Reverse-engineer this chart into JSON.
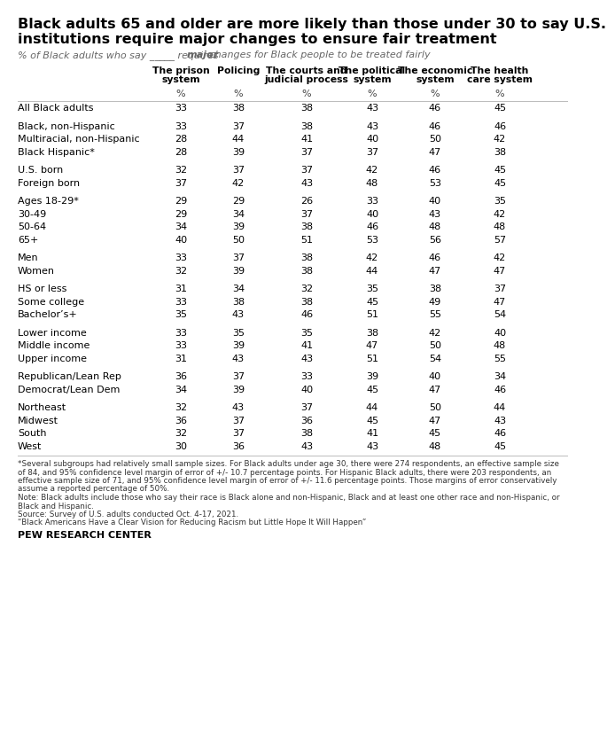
{
  "title_line1": "Black adults 65 and older are more likely than those under 30 to say U.S.",
  "title_line2": "institutions require major changes to ensure fair treatment",
  "subtitle_part1": "% of Black adults who say _____ requires ",
  "subtitle_bold": "major",
  "subtitle_part2": " changes for Black people to be treated fairly",
  "col_headers": [
    "The prison\nsystem",
    "Policing",
    "The courts and\njudicial process",
    "The political\nsystem",
    "The economic\nsystem",
    "The health\ncare system"
  ],
  "rows": [
    {
      "label": "All Black adults",
      "values": [
        33,
        38,
        38,
        43,
        46,
        45
      ],
      "gap_before": false
    },
    {
      "label": "Black, non-Hispanic",
      "values": [
        33,
        37,
        38,
        43,
        46,
        46
      ],
      "gap_before": true
    },
    {
      "label": "Multiracial, non-Hispanic",
      "values": [
        28,
        44,
        41,
        40,
        50,
        42
      ],
      "gap_before": false
    },
    {
      "label": "Black Hispanic*",
      "values": [
        28,
        39,
        37,
        37,
        47,
        38
      ],
      "gap_before": false
    },
    {
      "label": "U.S. born",
      "values": [
        32,
        37,
        37,
        42,
        46,
        45
      ],
      "gap_before": true
    },
    {
      "label": "Foreign born",
      "values": [
        37,
        42,
        43,
        48,
        53,
        45
      ],
      "gap_before": false
    },
    {
      "label": "Ages 18-29*",
      "values": [
        29,
        29,
        26,
        33,
        40,
        35
      ],
      "gap_before": true
    },
    {
      "label": "30-49",
      "values": [
        29,
        34,
        37,
        40,
        43,
        42
      ],
      "gap_before": false
    },
    {
      "label": "50-64",
      "values": [
        34,
        39,
        38,
        46,
        48,
        48
      ],
      "gap_before": false
    },
    {
      "label": "65+",
      "values": [
        40,
        50,
        51,
        53,
        56,
        57
      ],
      "gap_before": false
    },
    {
      "label": "Men",
      "values": [
        33,
        37,
        38,
        42,
        46,
        42
      ],
      "gap_before": true
    },
    {
      "label": "Women",
      "values": [
        32,
        39,
        38,
        44,
        47,
        47
      ],
      "gap_before": false
    },
    {
      "label": "HS or less",
      "values": [
        31,
        34,
        32,
        35,
        38,
        37
      ],
      "gap_before": true
    },
    {
      "label": "Some college",
      "values": [
        33,
        38,
        38,
        45,
        49,
        47
      ],
      "gap_before": false
    },
    {
      "label": "Bachelor’s+",
      "values": [
        35,
        43,
        46,
        51,
        55,
        54
      ],
      "gap_before": false
    },
    {
      "label": "Lower income",
      "values": [
        33,
        35,
        35,
        38,
        42,
        40
      ],
      "gap_before": true
    },
    {
      "label": "Middle income",
      "values": [
        33,
        39,
        41,
        47,
        50,
        48
      ],
      "gap_before": false
    },
    {
      "label": "Upper income",
      "values": [
        31,
        43,
        43,
        51,
        54,
        55
      ],
      "gap_before": false
    },
    {
      "label": "Republican/Lean Rep",
      "values": [
        36,
        37,
        33,
        39,
        40,
        34
      ],
      "gap_before": true
    },
    {
      "label": "Democrat/Lean Dem",
      "values": [
        34,
        39,
        40,
        45,
        47,
        46
      ],
      "gap_before": false
    },
    {
      "label": "Northeast",
      "values": [
        32,
        43,
        37,
        44,
        50,
        44
      ],
      "gap_before": true
    },
    {
      "label": "Midwest",
      "values": [
        36,
        37,
        36,
        45,
        47,
        43
      ],
      "gap_before": false
    },
    {
      "label": "South",
      "values": [
        32,
        37,
        38,
        41,
        45,
        46
      ],
      "gap_before": false
    },
    {
      "label": "West",
      "values": [
        30,
        36,
        43,
        43,
        48,
        45
      ],
      "gap_before": false
    }
  ],
  "footnote_lines": [
    "*Several subgroups had relatively small sample sizes. For Black adults under age 30, there were 274 respondents, an effective sample size",
    "of 84, and 95% confidence level margin of error of +/- 10.7 percentage points. For Hispanic Black adults, there were 203 respondents, an",
    "effective sample size of 71, and 95% confidence level margin of error of +/- 11.6 percentage points. Those margins of error conservatively",
    "assume a reported percentage of 50%.",
    "Note: Black adults include those who say their race is Black alone and non-Hispanic, Black and at least one other race and non-Hispanic, or",
    "Black and Hispanic.",
    "Source: Survey of U.S. adults conducted Oct. 4-17, 2021.",
    "“Black Americans Have a Clear Vision for Reducing Racism but Little Hope It Will Happen”"
  ],
  "source_label": "PEW RESEARCH CENTER",
  "bg_color": "#ffffff",
  "text_color": "#000000",
  "header_color": "#000000",
  "line_color": "#bbbbbb",
  "title_color": "#000000",
  "subtitle_color": "#666666"
}
